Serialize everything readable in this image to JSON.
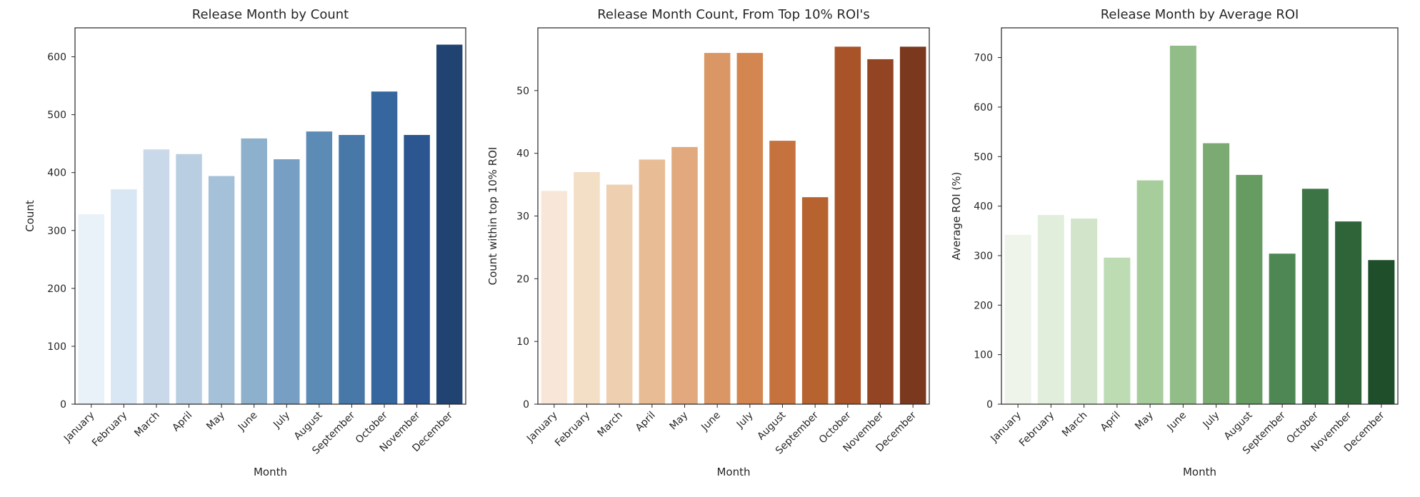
{
  "chart_data": [
    {
      "type": "bar",
      "title": "Release Month by Count",
      "xlabel": "Month",
      "ylabel": "Count",
      "categories": [
        "January",
        "February",
        "March",
        "April",
        "May",
        "June",
        "July",
        "August",
        "September",
        "October",
        "November",
        "December"
      ],
      "values": [
        328,
        371,
        440,
        432,
        394,
        459,
        423,
        471,
        465,
        540,
        465,
        621
      ],
      "ylim": [
        0,
        650
      ],
      "yticks": [
        0,
        100,
        200,
        300,
        400,
        500,
        600
      ],
      "palette": "Blues",
      "colors": [
        "#e9f1f9",
        "#d9e6f3",
        "#cad9e9",
        "#b9cfe1",
        "#a4c1d9",
        "#8db0cd",
        "#769fc3",
        "#5c8bb6",
        "#4878a8",
        "#36669e",
        "#2b568f",
        "#214372"
      ],
      "grid": false
    },
    {
      "type": "bar",
      "title": "Release Month Count, From Top 10% ROI's",
      "xlabel": "Month",
      "ylabel": "Count within top 10% ROI",
      "categories": [
        "January",
        "February",
        "March",
        "April",
        "May",
        "June",
        "July",
        "August",
        "September",
        "October",
        "November",
        "December"
      ],
      "values": [
        34,
        37,
        35,
        39,
        41,
        56,
        56,
        42,
        33,
        57,
        55,
        57
      ],
      "ylim": [
        0,
        60
      ],
      "yticks": [
        0,
        10,
        20,
        30,
        40,
        50
      ],
      "palette": "Oranges",
      "colors": [
        "#f8e7d8",
        "#f3dec6",
        "#eed0b0",
        "#e8bd96",
        "#e2a97e",
        "#da9765",
        "#d48650",
        "#c5723e",
        "#b66330",
        "#a95328",
        "#924423",
        "#7a391f"
      ],
      "grid": false
    },
    {
      "type": "bar",
      "title": "Release Month by Average ROI",
      "xlabel": "Month",
      "ylabel": "Average ROI (%)",
      "categories": [
        "January",
        "February",
        "March",
        "April",
        "May",
        "June",
        "July",
        "August",
        "September",
        "October",
        "November",
        "December"
      ],
      "values": [
        342,
        382,
        375,
        296,
        452,
        724,
        527,
        463,
        304,
        435,
        369,
        291
      ],
      "ylim": [
        0,
        760
      ],
      "yticks": [
        0,
        100,
        200,
        300,
        400,
        500,
        600,
        700
      ],
      "palette": "Greens",
      "colors": [
        "#eef4ea",
        "#e2eedc",
        "#d2e5cb",
        "#bddcb4",
        "#a7cd9d",
        "#92bd89",
        "#7bab72",
        "#669c62",
        "#4f8754",
        "#3c7446",
        "#2f6439",
        "#1f4f2a"
      ],
      "grid": false
    }
  ]
}
